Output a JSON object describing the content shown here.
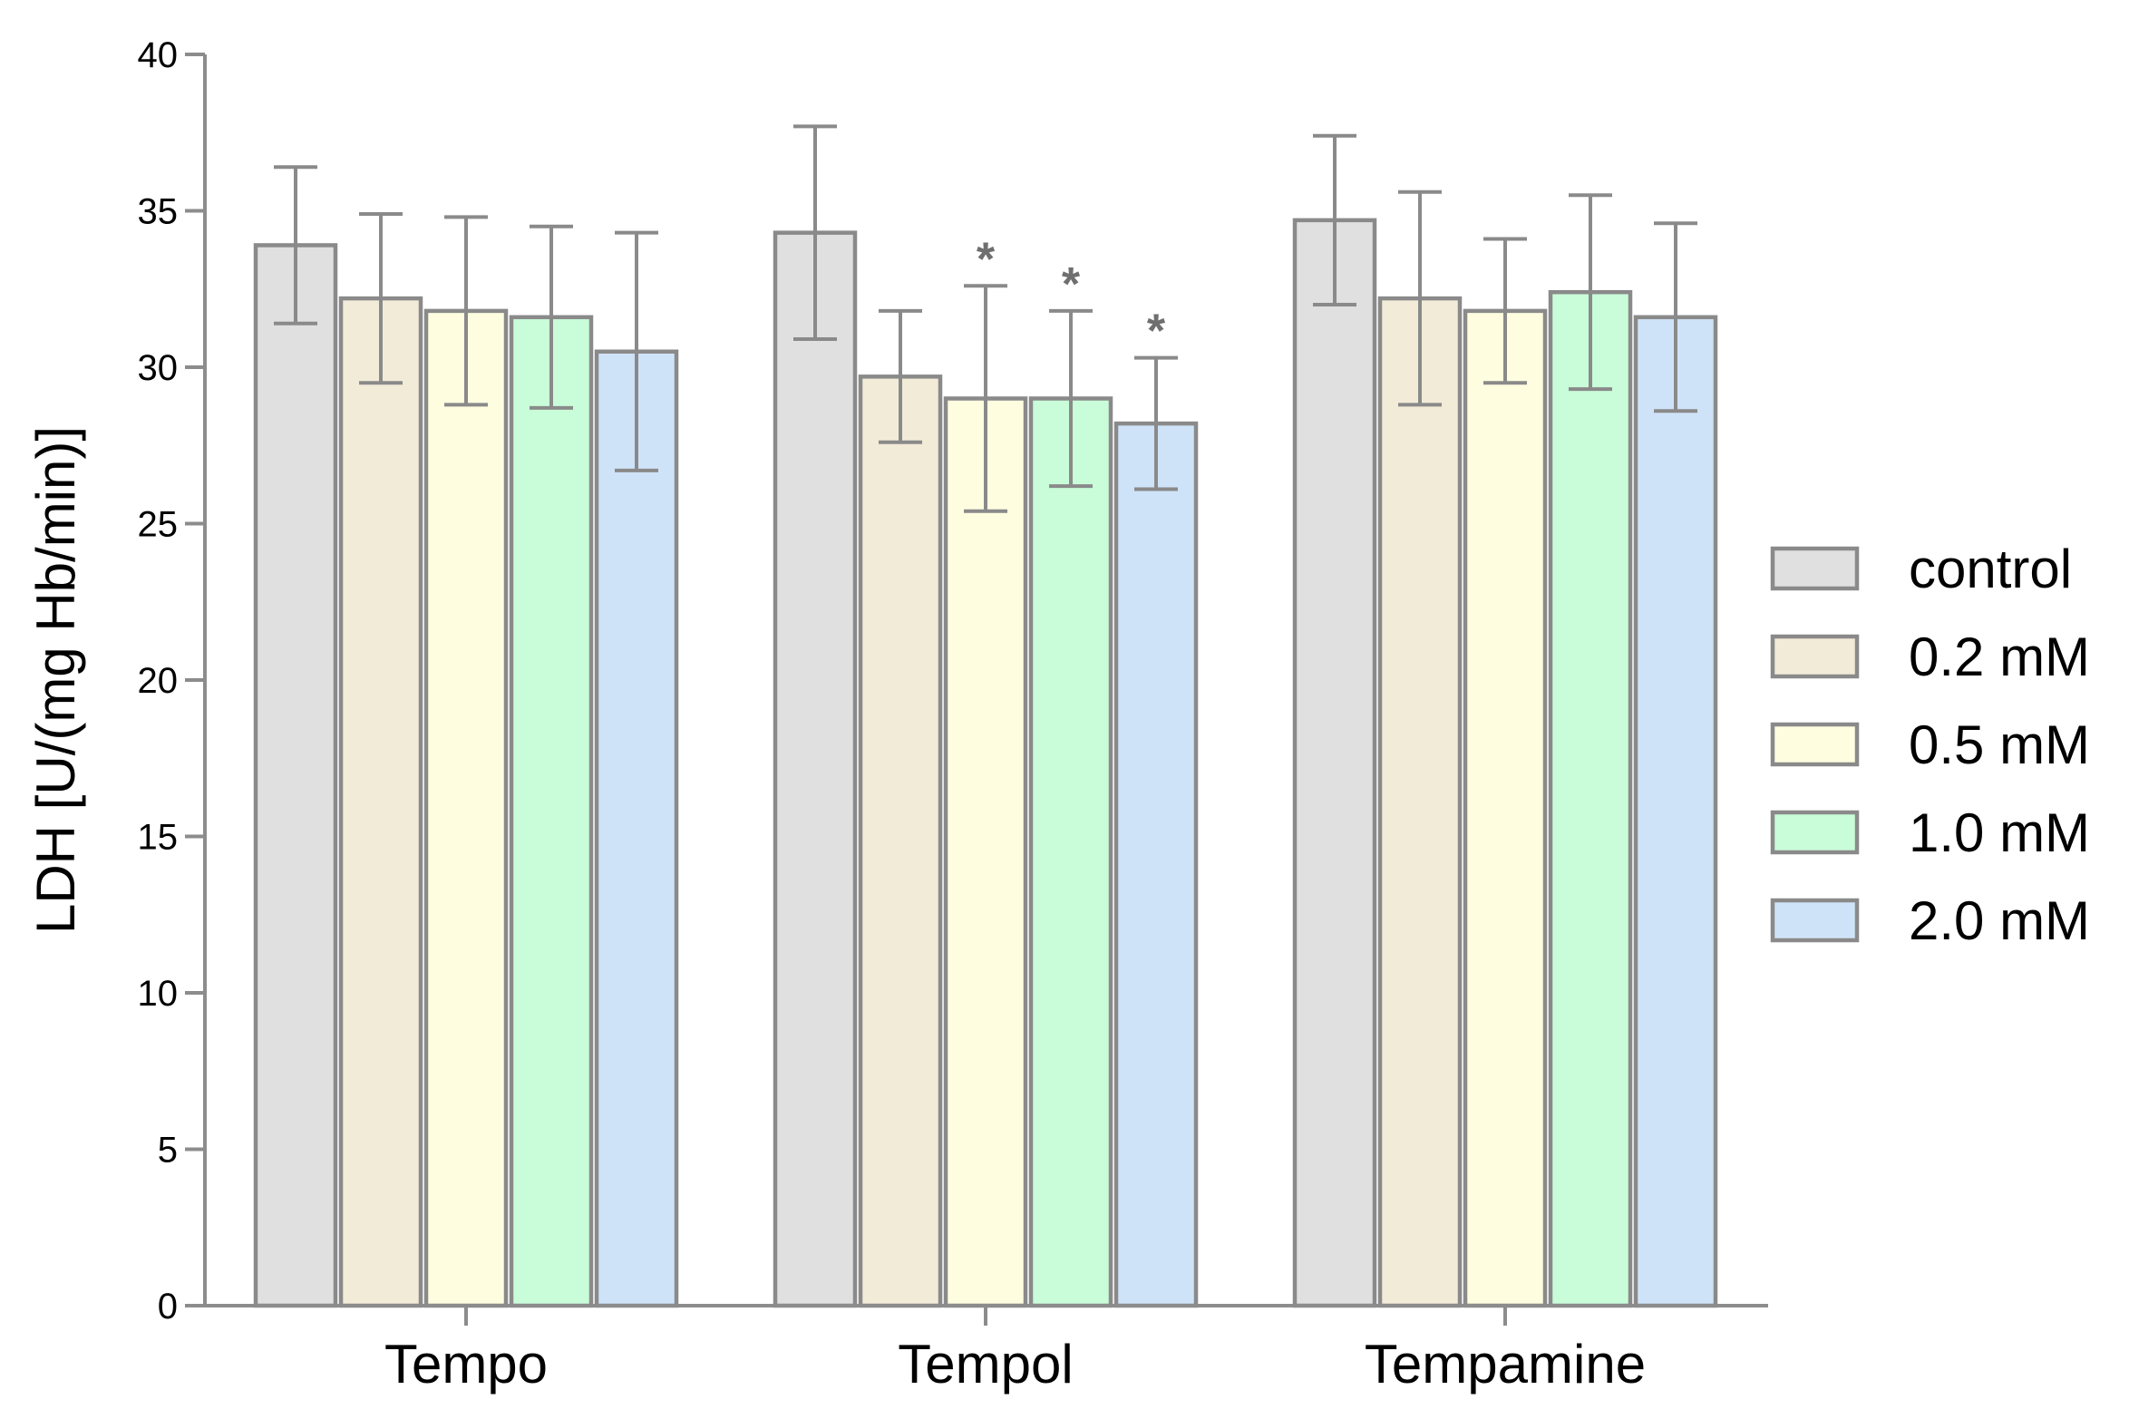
{
  "chart_data": {
    "type": "bar",
    "ylabel": "LDH [U/(mg Hb/min)]",
    "xlabel": "",
    "ylim": [
      0,
      40
    ],
    "yticks": [
      0,
      5,
      10,
      15,
      20,
      25,
      30,
      35,
      40
    ],
    "categories": [
      "Tempo",
      "Tempol",
      "Tempamine"
    ],
    "legend_position": "right",
    "series": [
      {
        "name": "control",
        "color": "#e0e0e0",
        "values": [
          33.9,
          34.3,
          34.7
        ],
        "errors": [
          2.5,
          3.4,
          2.7
        ],
        "significant": [
          false,
          false,
          false
        ]
      },
      {
        "name": "0.2 mM",
        "color": "#f2ebd7",
        "values": [
          32.2,
          29.7,
          32.2
        ],
        "errors": [
          2.7,
          2.1,
          3.4
        ],
        "significant": [
          false,
          false,
          false
        ]
      },
      {
        "name": "0.5 mM",
        "color": "#fefde0",
        "values": [
          31.8,
          29.0,
          31.8
        ],
        "errors": [
          3.0,
          3.6,
          2.3
        ],
        "significant": [
          false,
          true,
          false
        ]
      },
      {
        "name": "1.0 mM",
        "color": "#c9fcd9",
        "values": [
          31.6,
          29.0,
          32.4
        ],
        "errors": [
          2.9,
          2.8,
          3.1
        ],
        "significant": [
          false,
          true,
          false
        ]
      },
      {
        "name": "2.0 mM",
        "color": "#cfe3f8",
        "values": [
          30.5,
          28.2,
          31.6
        ],
        "errors": [
          3.8,
          2.1,
          3.0
        ],
        "significant": [
          false,
          true,
          false
        ]
      }
    ],
    "significance_marker": "*"
  }
}
